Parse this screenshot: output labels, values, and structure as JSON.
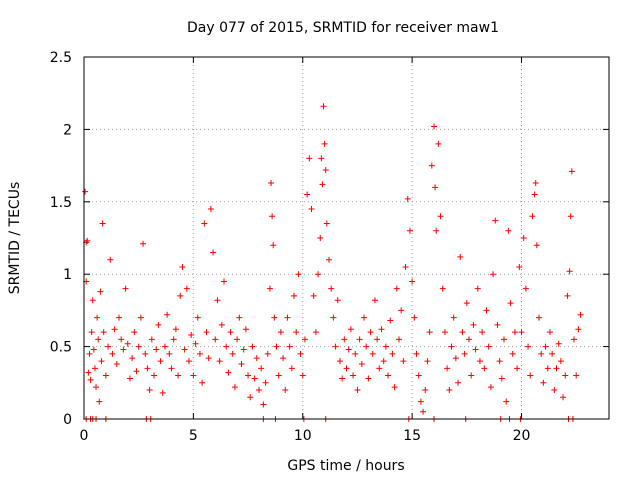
{
  "chart_data": {
    "type": "scatter",
    "title": "Day 077 of 2015, SRMTID for receiver maw1",
    "xlabel": "GPS time / hours",
    "ylabel": "SRMTID / TECUs",
    "xlim": [
      0,
      24
    ],
    "ylim": [
      0,
      2.5
    ],
    "xticks": [
      0,
      5,
      10,
      15,
      20
    ],
    "xtick_labels": [
      "0",
      "5",
      "10",
      "15",
      "20"
    ],
    "yticks": [
      0,
      0.5,
      1,
      1.5,
      2,
      2.5
    ],
    "ytick_labels": [
      "0",
      "0.5",
      "1",
      "1.5",
      "2",
      "2.5"
    ],
    "grid": true,
    "marker": "+",
    "color": "#ff0000",
    "series": [
      {
        "name": "SRMTID",
        "points": [
          [
            0.05,
            1.57
          ],
          [
            0.1,
            1.22
          ],
          [
            0.15,
            1.23
          ],
          [
            0.1,
            0.95
          ],
          [
            0.2,
            0.32
          ],
          [
            0.25,
            0.45
          ],
          [
            0.3,
            0.27
          ],
          [
            0.35,
            0.6
          ],
          [
            0.4,
            0.82
          ],
          [
            0.45,
            0.48
          ],
          [
            0.5,
            0.35
          ],
          [
            0.55,
            0.22
          ],
          [
            0.6,
            0.7
          ],
          [
            0.65,
            0.55
          ],
          [
            0.7,
            0.12
          ],
          [
            0.75,
            0.88
          ],
          [
            0.8,
            0.4
          ],
          [
            0.85,
            1.35
          ],
          [
            0.9,
            0.6
          ],
          [
            1.0,
            0.3
          ],
          [
            1.1,
            0.5
          ],
          [
            1.2,
            1.1
          ],
          [
            1.3,
            0.45
          ],
          [
            1.4,
            0.62
          ],
          [
            1.5,
            0.38
          ],
          [
            1.6,
            0.7
          ],
          [
            1.7,
            0.55
          ],
          [
            1.8,
            0.48
          ],
          [
            1.9,
            0.9
          ],
          [
            2.0,
            0.52
          ],
          [
            2.1,
            0.28
          ],
          [
            2.2,
            0.42
          ],
          [
            2.3,
            0.6
          ],
          [
            2.4,
            0.33
          ],
          [
            2.5,
            0.5
          ],
          [
            2.6,
            0.7
          ],
          [
            2.7,
            1.21
          ],
          [
            2.8,
            0.45
          ],
          [
            2.9,
            0.35
          ],
          [
            3.0,
            0.2
          ],
          [
            3.1,
            0.55
          ],
          [
            3.2,
            0.3
          ],
          [
            3.3,
            0.48
          ],
          [
            3.4,
            0.65
          ],
          [
            3.5,
            0.4
          ],
          [
            3.6,
            0.18
          ],
          [
            3.7,
            0.5
          ],
          [
            3.8,
            0.72
          ],
          [
            3.9,
            0.45
          ],
          [
            4.0,
            0.35
          ],
          [
            4.1,
            0.55
          ],
          [
            4.2,
            0.62
          ],
          [
            4.3,
            0.3
          ],
          [
            4.4,
            0.85
          ],
          [
            4.5,
            1.05
          ],
          [
            4.6,
            0.48
          ],
          [
            4.7,
            0.9
          ],
          [
            4.8,
            0.4
          ],
          [
            4.9,
            0.58
          ],
          [
            5.0,
            0.3
          ],
          [
            5.1,
            0.52
          ],
          [
            5.2,
            0.7
          ],
          [
            5.3,
            0.45
          ],
          [
            5.4,
            0.25
          ],
          [
            5.5,
            1.35
          ],
          [
            5.6,
            0.6
          ],
          [
            5.7,
            0.42
          ],
          [
            5.8,
            1.45
          ],
          [
            5.9,
            1.15
          ],
          [
            6.0,
            0.55
          ],
          [
            6.1,
            0.82
          ],
          [
            6.2,
            0.4
          ],
          [
            6.3,
            0.65
          ],
          [
            6.4,
            0.95
          ],
          [
            6.5,
            0.5
          ],
          [
            6.6,
            0.32
          ],
          [
            6.7,
            0.6
          ],
          [
            6.8,
            0.45
          ],
          [
            6.9,
            0.22
          ],
          [
            7.0,
            0.55
          ],
          [
            7.1,
            0.7
          ],
          [
            7.2,
            0.38
          ],
          [
            7.3,
            0.48
          ],
          [
            7.4,
            0.62
          ],
          [
            7.5,
            0.3
          ],
          [
            7.6,
            0.15
          ],
          [
            7.7,
            0.5
          ],
          [
            7.8,
            0.28
          ],
          [
            7.9,
            0.42
          ],
          [
            8.0,
            0.2
          ],
          [
            8.1,
            0.35
          ],
          [
            8.2,
            0.1
          ],
          [
            8.3,
            0.25
          ],
          [
            8.4,
            0.45
          ],
          [
            8.5,
            0.9
          ],
          [
            8.55,
            1.63
          ],
          [
            8.6,
            1.4
          ],
          [
            8.65,
            1.2
          ],
          [
            8.7,
            0.7
          ],
          [
            8.8,
            0.5
          ],
          [
            8.9,
            0.3
          ],
          [
            9.0,
            0.6
          ],
          [
            9.1,
            0.42
          ],
          [
            9.2,
            0.2
          ],
          [
            9.3,
            0.7
          ],
          [
            9.4,
            0.5
          ],
          [
            9.5,
            0.35
          ],
          [
            9.6,
            0.85
          ],
          [
            9.7,
            0.6
          ],
          [
            9.8,
            1.0
          ],
          [
            9.9,
            0.45
          ],
          [
            10.0,
            0.3
          ],
          [
            10.1,
            0.55
          ],
          [
            10.2,
            1.55
          ],
          [
            10.3,
            1.8
          ],
          [
            10.4,
            1.45
          ],
          [
            10.5,
            0.85
          ],
          [
            10.6,
            0.6
          ],
          [
            10.7,
            1.0
          ],
          [
            10.8,
            1.25
          ],
          [
            10.85,
            1.8
          ],
          [
            10.9,
            1.62
          ],
          [
            10.95,
            2.16
          ],
          [
            11.0,
            1.9
          ],
          [
            11.05,
            1.72
          ],
          [
            11.1,
            1.35
          ],
          [
            11.2,
            1.1
          ],
          [
            11.3,
            0.9
          ],
          [
            11.4,
            0.7
          ],
          [
            11.5,
            0.5
          ],
          [
            11.6,
            0.82
          ],
          [
            11.7,
            0.4
          ],
          [
            11.8,
            0.28
          ],
          [
            11.9,
            0.55
          ],
          [
            12.0,
            0.35
          ],
          [
            12.1,
            0.48
          ],
          [
            12.2,
            0.62
          ],
          [
            12.3,
            0.3
          ],
          [
            12.4,
            0.45
          ],
          [
            12.5,
            0.2
          ],
          [
            12.6,
            0.55
          ],
          [
            12.7,
            0.38
          ],
          [
            12.8,
            0.7
          ],
          [
            12.9,
            0.5
          ],
          [
            13.0,
            0.28
          ],
          [
            13.1,
            0.6
          ],
          [
            13.2,
            0.45
          ],
          [
            13.3,
            0.82
          ],
          [
            13.4,
            0.55
          ],
          [
            13.5,
            0.35
          ],
          [
            13.6,
            0.62
          ],
          [
            13.7,
            0.4
          ],
          [
            13.8,
            0.5
          ],
          [
            13.9,
            0.3
          ],
          [
            14.0,
            0.68
          ],
          [
            14.1,
            0.45
          ],
          [
            14.2,
            0.22
          ],
          [
            14.3,
            0.9
          ],
          [
            14.4,
            0.55
          ],
          [
            14.5,
            0.75
          ],
          [
            14.6,
            0.4
          ],
          [
            14.7,
            1.05
          ],
          [
            14.8,
            1.52
          ],
          [
            14.9,
            1.3
          ],
          [
            15.0,
            0.95
          ],
          [
            15.1,
            0.7
          ],
          [
            15.2,
            0.45
          ],
          [
            15.3,
            0.3
          ],
          [
            15.4,
            0.12
          ],
          [
            15.5,
            0.05
          ],
          [
            15.6,
            0.2
          ],
          [
            15.7,
            0.4
          ],
          [
            15.8,
            0.6
          ],
          [
            15.9,
            1.75
          ],
          [
            16.0,
            2.02
          ],
          [
            16.05,
            1.6
          ],
          [
            16.1,
            1.3
          ],
          [
            16.2,
            1.9
          ],
          [
            16.3,
            1.4
          ],
          [
            16.4,
            0.9
          ],
          [
            16.5,
            0.6
          ],
          [
            16.6,
            0.35
          ],
          [
            16.7,
            0.2
          ],
          [
            16.8,
            0.5
          ],
          [
            16.9,
            0.7
          ],
          [
            17.0,
            0.42
          ],
          [
            17.1,
            0.25
          ],
          [
            17.2,
            1.12
          ],
          [
            17.3,
            0.6
          ],
          [
            17.4,
            0.45
          ],
          [
            17.5,
            0.8
          ],
          [
            17.6,
            0.55
          ],
          [
            17.7,
            0.3
          ],
          [
            17.8,
            0.65
          ],
          [
            17.9,
            0.48
          ],
          [
            18.0,
            0.9
          ],
          [
            18.1,
            0.4
          ],
          [
            18.2,
            0.6
          ],
          [
            18.3,
            0.35
          ],
          [
            18.4,
            0.75
          ],
          [
            18.5,
            0.5
          ],
          [
            18.6,
            0.22
          ],
          [
            18.7,
            1.0
          ],
          [
            18.8,
            1.37
          ],
          [
            18.9,
            0.65
          ],
          [
            19.0,
            0.4
          ],
          [
            19.1,
            0.28
          ],
          [
            19.2,
            0.55
          ],
          [
            19.3,
            0.12
          ],
          [
            19.4,
            1.3
          ],
          [
            19.5,
            0.8
          ],
          [
            19.6,
            0.45
          ],
          [
            19.7,
            0.6
          ],
          [
            19.8,
            0.35
          ],
          [
            19.9,
            1.05
          ],
          [
            20.0,
            0.6
          ],
          [
            20.1,
            1.25
          ],
          [
            20.2,
            0.9
          ],
          [
            20.3,
            0.5
          ],
          [
            20.4,
            0.3
          ],
          [
            20.5,
            1.4
          ],
          [
            20.6,
            1.55
          ],
          [
            20.65,
            1.63
          ],
          [
            20.7,
            1.2
          ],
          [
            20.8,
            0.7
          ],
          [
            20.9,
            0.45
          ],
          [
            21.0,
            0.25
          ],
          [
            21.1,
            0.5
          ],
          [
            21.2,
            0.35
          ],
          [
            21.3,
            0.6
          ],
          [
            21.4,
            0.45
          ],
          [
            21.5,
            0.2
          ],
          [
            21.6,
            0.35
          ],
          [
            21.7,
            0.52
          ],
          [
            21.8,
            0.4
          ],
          [
            21.9,
            0.15
          ],
          [
            22.0,
            0.3
          ],
          [
            22.1,
            0.85
          ],
          [
            22.2,
            1.02
          ],
          [
            22.25,
            1.4
          ],
          [
            22.3,
            1.71
          ],
          [
            22.4,
            0.55
          ],
          [
            22.5,
            0.3
          ],
          [
            22.6,
            0.62
          ],
          [
            22.7,
            0.72
          ]
        ],
        "zero_points": [
          0.1,
          0.3,
          0.4,
          0.55,
          1.0,
          2.85,
          3.05,
          8.2,
          8.75,
          10.05,
          11.05,
          14.85,
          16.0,
          17.45,
          19.05,
          19.45,
          19.95,
          22.15,
          22.35
        ]
      }
    ]
  }
}
